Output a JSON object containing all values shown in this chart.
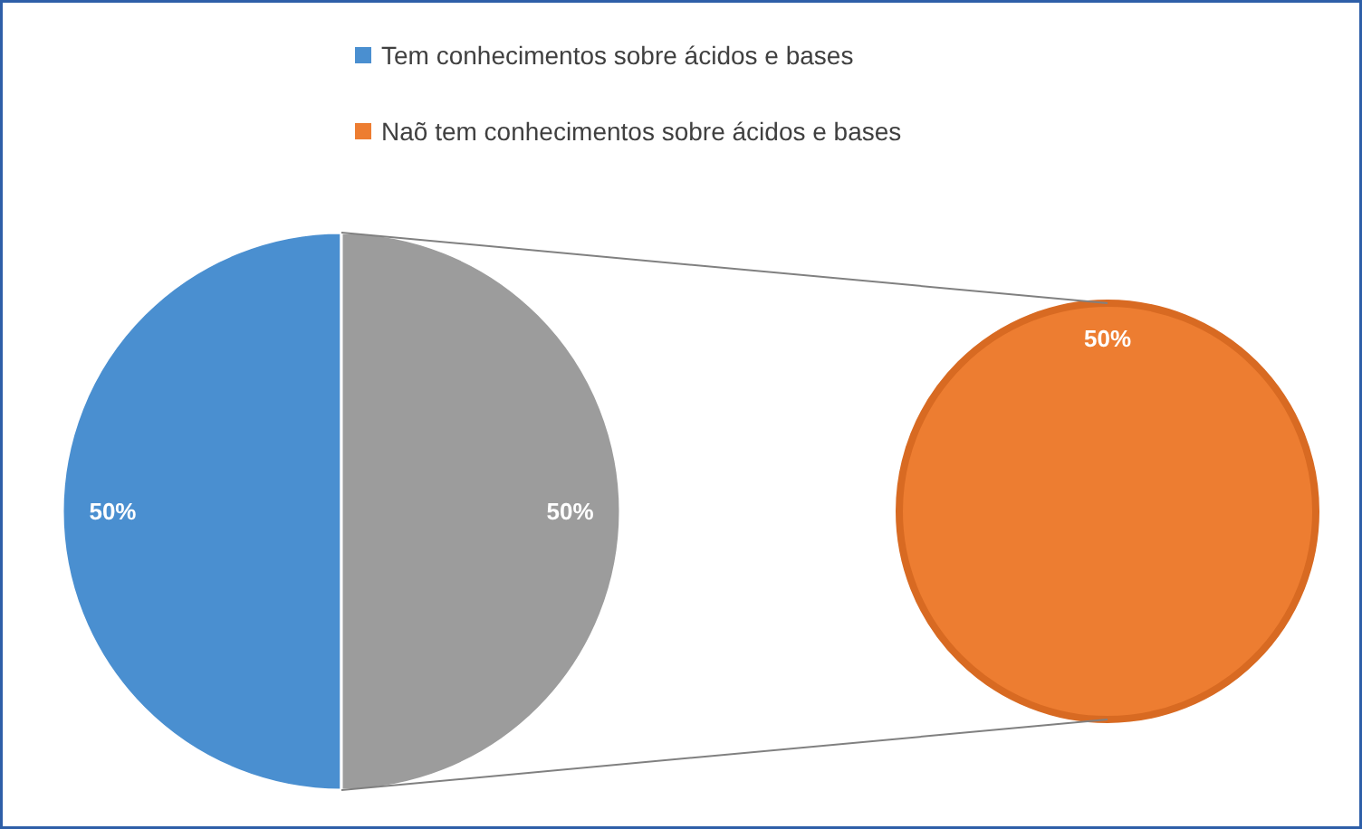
{
  "chart_data": [
    {
      "type": "pie",
      "categories": [
        "Tem conhecimentos sobre ácidos e bases",
        null
      ],
      "values": [
        50,
        50
      ],
      "colors": [
        "#4a8fd0",
        "#9c9c9c"
      ],
      "value_labels": [
        "50%",
        "50%"
      ],
      "legend": "top"
    },
    {
      "type": "other",
      "categories": [
        "Naõ tem conhecimentos sobre ácidos e bases"
      ],
      "values": [
        50
      ],
      "colors": [
        "#ed7d31"
      ],
      "value_labels": [
        "50%"
      ]
    }
  ]
}
